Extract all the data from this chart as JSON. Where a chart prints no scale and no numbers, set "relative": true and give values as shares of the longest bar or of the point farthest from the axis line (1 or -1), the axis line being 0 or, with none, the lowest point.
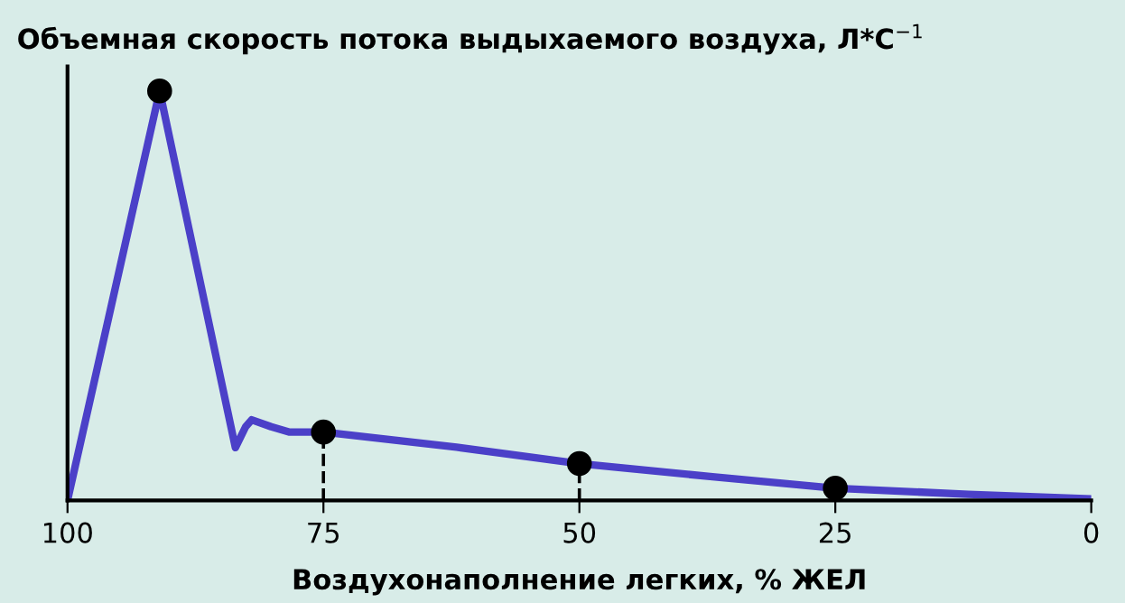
{
  "chart_data": {
    "type": "line",
    "relative": true,
    "title": "Объемная скорость потока выдыхаемого воздуха, Л*С$^{−1}$",
    "xlabel": "Воздухонаполнение легких, % ЖЕЛ",
    "xlim": [
      100,
      0
    ],
    "xticks": [
      100,
      75,
      50,
      25,
      0
    ],
    "grid": false,
    "series": [
      {
        "color": "#4b40c8",
        "marker": "none",
        "line_style": "solid",
        "x": [
          100,
          91,
          83.6,
          82.6,
          82.0,
          80.1,
          78.3,
          75,
          62,
          50,
          37,
          25,
          12,
          0
        ],
        "values": [
          0,
          1,
          0.129,
          0.18,
          0.197,
          0.18,
          0.167,
          0.167,
          0.13,
          0.09,
          0.058,
          0.03,
          0.015,
          0.004
        ]
      },
      {
        "type": "scatter",
        "color": "#000000",
        "marker": "circle",
        "x": [
          91
        ],
        "values": [
          1
        ]
      },
      {
        "type": "lollipop",
        "color": "#000000",
        "marker": "circle",
        "line_style": "dashed",
        "x": [
          75,
          50,
          25
        ],
        "values": [
          0.167,
          0.09,
          0.03
        ]
      }
    ]
  }
}
